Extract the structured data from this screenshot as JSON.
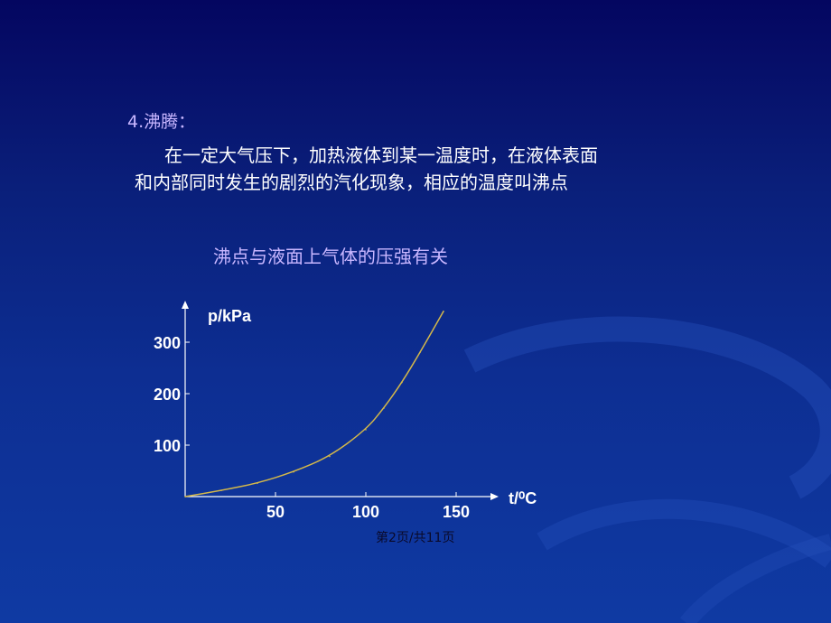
{
  "slide": {
    "heading": "4.沸腾：",
    "paragraph_lines": [
      "在一定大气压下，加热液体到某一温度时，在液体表面",
      "和内部同时发生的剧烈的汽化现象，相应的温度叫沸点"
    ],
    "footer": "第2页/共11页"
  },
  "colors": {
    "background_top": "#040660",
    "background_bottom": "#0f3aa3",
    "heading": "#c8b6ff",
    "curve": "#d4b84a",
    "axis": "#ffffff"
  },
  "chart_data": {
    "type": "line",
    "title": "沸点与液面上气体的压强有关",
    "xlabel": "t/⁰C",
    "ylabel": "p/kPa",
    "xlim": [
      0,
      160
    ],
    "ylim": [
      0,
      380
    ],
    "x_ticks": [
      50,
      100,
      150
    ],
    "y_ticks": [
      100,
      200,
      300
    ],
    "grid": false,
    "series": [
      {
        "x": [
          0,
          20,
          40,
          60,
          80,
          100,
          110,
          120,
          130,
          143
        ],
        "values": [
          0,
          12,
          26,
          48,
          78,
          130,
          172,
          222,
          280,
          360
        ]
      }
    ]
  }
}
